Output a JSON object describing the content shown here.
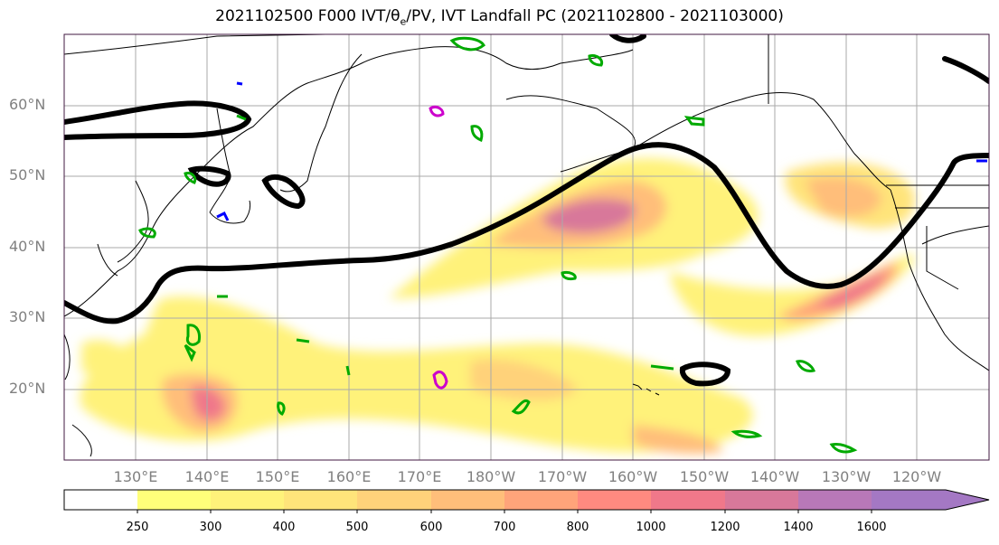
{
  "title": "2021102500 F000 IVT/θ",
  "title_sub": "e",
  "title_rest": "/PV, IVT Landfall PC (2021102800 - 2021103000)",
  "lat_labels": [
    "60°N",
    "50°N",
    "40°N",
    "30°N",
    "20°N"
  ],
  "lon_labels": [
    "130°E",
    "140°E",
    "150°E",
    "160°E",
    "170°E",
    "180°W",
    "170°W",
    "160°W",
    "150°W",
    "140°W",
    "130°W",
    "120°W"
  ],
  "colorbar": {
    "labels": [
      "250",
      "300",
      "400",
      "500",
      "600",
      "700",
      "800",
      "1000",
      "1200",
      "1400",
      "1600"
    ],
    "colors": [
      "#ffffff",
      "#ffff7a",
      "#fff27a",
      "#ffe47a",
      "#ffd27a",
      "#ffbe7a",
      "#ffa47a",
      "#ff8a80",
      "#f0788a",
      "#d8789a",
      "#b878b8",
      "#a478c4"
    ]
  },
  "colors": {
    "contour_black": "#000000",
    "contour_green": "#00aa00",
    "contour_blue": "#0000ff",
    "contour_magenta": "#cc00cc",
    "grid": "#aaaaaa",
    "frame": "#401840"
  }
}
